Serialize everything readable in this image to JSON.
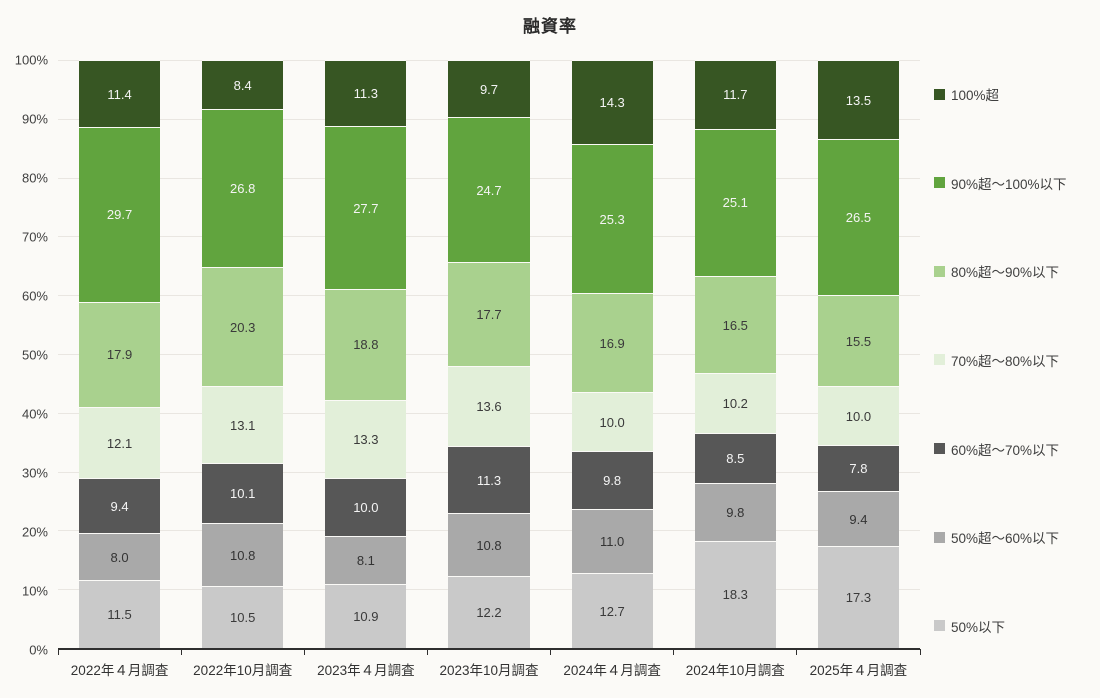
{
  "chart_data": {
    "type": "bar",
    "variant": "stacked-100-percent-column",
    "title": "融資率",
    "legend_position": "right",
    "grid": true,
    "ylim": [
      0,
      100
    ],
    "y_ticks": [
      "0%",
      "10%",
      "20%",
      "30%",
      "40%",
      "50%",
      "60%",
      "70%",
      "80%",
      "90%",
      "100%"
    ],
    "categories": [
      "2022年４月調査",
      "2022年10月調査",
      "2023年４月調査",
      "2023年10月調査",
      "2024年４月調査",
      "2024年10月調査",
      "2025年４月調査"
    ],
    "series": [
      {
        "name": "50%以下",
        "color": "#c9c9c9",
        "label_color": "#3a3a3a",
        "values": [
          11.5,
          10.5,
          10.9,
          12.2,
          12.7,
          18.3,
          17.3
        ]
      },
      {
        "name": "50%超～60%以下",
        "color": "#a9a9a9",
        "label_color": "#333333",
        "values": [
          8.0,
          10.8,
          8.1,
          10.8,
          11.0,
          9.8,
          9.4
        ]
      },
      {
        "name": "60%超～70%以下",
        "color": "#575757",
        "label_color": "#f4f4f4",
        "values": [
          9.4,
          10.1,
          10.0,
          11.3,
          9.8,
          8.5,
          7.8
        ]
      },
      {
        "name": "70%超～80%以下",
        "color": "#e2efd9",
        "label_color": "#3a3a3a",
        "values": [
          12.1,
          13.1,
          13.3,
          13.6,
          10.0,
          10.2,
          10.0
        ]
      },
      {
        "name": "80%超～90%以下",
        "color": "#a9d18e",
        "label_color": "#3a3a3a",
        "values": [
          17.9,
          20.3,
          18.8,
          17.7,
          16.9,
          16.5,
          15.5
        ]
      },
      {
        "name": "90%超～100%以下",
        "color": "#61a43e",
        "label_color": "#f4f4f4",
        "values": [
          29.7,
          26.8,
          27.7,
          24.7,
          25.3,
          25.1,
          26.5
        ]
      },
      {
        "name": "100%超",
        "color": "#375623",
        "label_color": "#f4f4f4",
        "values": [
          11.4,
          8.4,
          11.3,
          9.7,
          14.3,
          11.7,
          13.5
        ]
      }
    ],
    "legend_order_top_to_bottom": [
      "100%超",
      "90%超～100%以下",
      "80%超～90%以下",
      "70%超～80%以下",
      "60%超～70%以下",
      "50%超～60%以下",
      "50%以下"
    ],
    "colors": {
      "background": "#fbfaf7",
      "gridline": "#e9e6e1",
      "axis_line": "#2f2f2f",
      "tick_label": "#3f3f3f",
      "title_text": "#2b2b2b"
    }
  }
}
